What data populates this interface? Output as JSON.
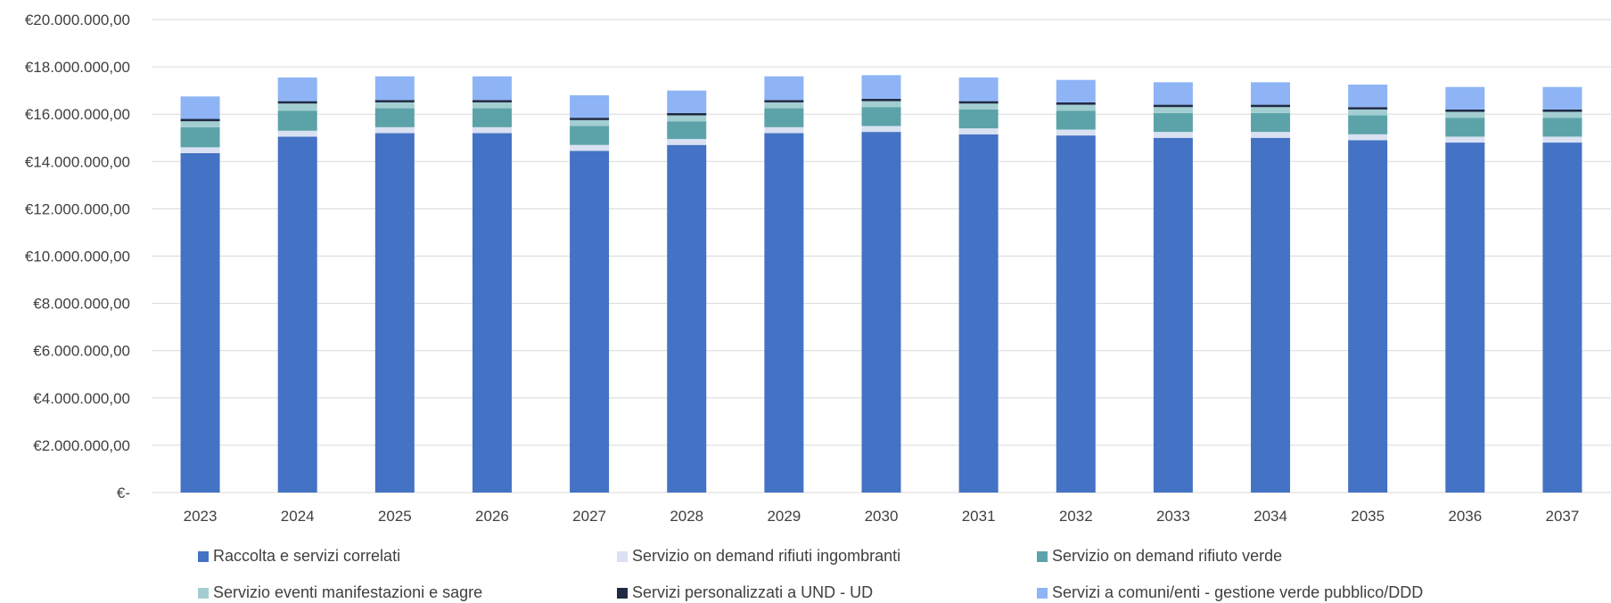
{
  "chart_data": {
    "type": "bar",
    "stacked": true,
    "title": "",
    "xlabel": "",
    "ylabel": "",
    "ylim": [
      0,
      20000000
    ],
    "yticks": [
      0,
      2000000,
      4000000,
      6000000,
      8000000,
      10000000,
      12000000,
      14000000,
      16000000,
      18000000,
      20000000
    ],
    "ytick_labels": [
      "€-",
      "€2.000.000,00",
      "€4.000.000,00",
      "€6.000.000,00",
      "€8.000.000,00",
      "€10.000.000,00",
      "€12.000.000,00",
      "€14.000.000,00",
      "€16.000.000,00",
      "€18.000.000,00",
      "€20.000.000,00"
    ],
    "categories": [
      "2023",
      "2024",
      "2025",
      "2026",
      "2027",
      "2028",
      "2029",
      "2030",
      "2031",
      "2032",
      "2033",
      "2034",
      "2035",
      "2036",
      "2037"
    ],
    "grid": true,
    "legend_position": "bottom",
    "series": [
      {
        "name": "Raccolta e servizi correlati",
        "color": "#4472C4",
        "values": [
          14350000,
          15050000,
          15200000,
          15200000,
          14450000,
          14700000,
          15200000,
          15250000,
          15150000,
          15100000,
          15000000,
          15000000,
          14900000,
          14800000,
          14800000
        ]
      },
      {
        "name": "Servizio on demand rifiuti ingombranti",
        "color": "#D9E1F2",
        "values": [
          250000,
          250000,
          250000,
          250000,
          250000,
          250000,
          250000,
          250000,
          250000,
          250000,
          250000,
          250000,
          250000,
          250000,
          250000
        ]
      },
      {
        "name": "Servizio on demand rifiuto verde",
        "color": "#5BA3A9",
        "values": [
          850000,
          850000,
          800000,
          800000,
          800000,
          750000,
          800000,
          800000,
          800000,
          800000,
          800000,
          800000,
          800000,
          800000,
          800000
        ]
      },
      {
        "name": "Servizio eventi manifestazioni e sagre",
        "color": "#A3CED1",
        "values": [
          250000,
          300000,
          250000,
          250000,
          250000,
          250000,
          250000,
          250000,
          250000,
          250000,
          250000,
          250000,
          250000,
          250000,
          250000
        ]
      },
      {
        "name": "Servizi personalizzati a UND - UD",
        "color": "#1F2A44",
        "values": [
          100000,
          100000,
          100000,
          100000,
          100000,
          100000,
          100000,
          100000,
          100000,
          100000,
          100000,
          100000,
          100000,
          100000,
          100000
        ]
      },
      {
        "name": "Servizi a comuni/enti - gestione verde pubblico/DDD",
        "color": "#8EB4F5",
        "values": [
          950000,
          1000000,
          1000000,
          1000000,
          950000,
          950000,
          1000000,
          1000000,
          1000000,
          950000,
          950000,
          950000,
          950000,
          950000,
          950000
        ]
      }
    ]
  }
}
